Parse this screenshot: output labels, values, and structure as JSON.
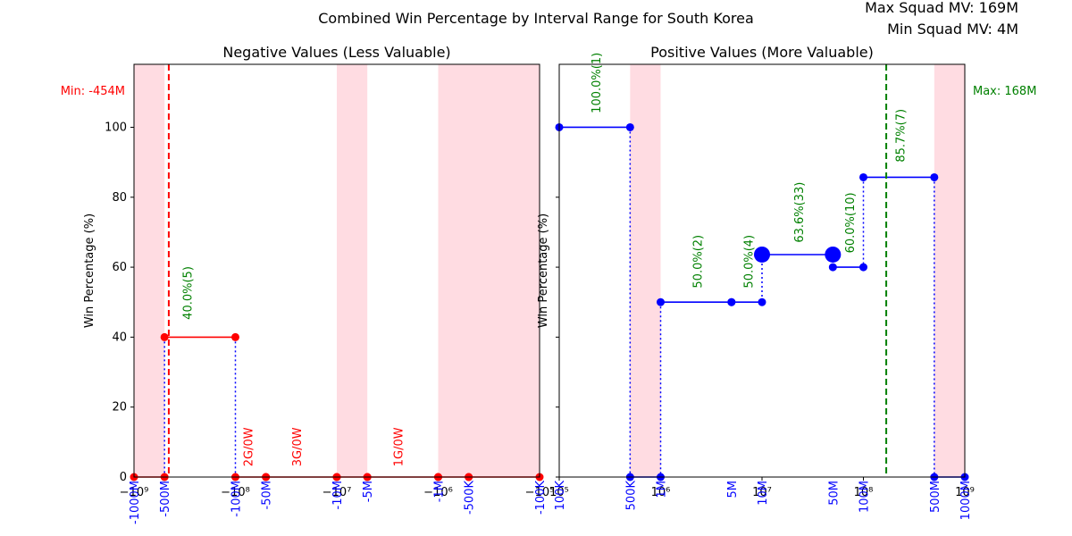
{
  "figure": {
    "suptitle": "Combined Win Percentage by Interval Range for South Korea",
    "max_label": "Max Squad MV: 169M",
    "min_label": "Min Squad MV: 4M"
  },
  "colors": {
    "negative": "#ff0000",
    "positive": "#0000ff",
    "annotation": "#008000",
    "shade": "#ffc0cb",
    "axis": "#000000"
  },
  "chart_data": [
    {
      "type": "line",
      "title": "Negative Values (Less Valuable)",
      "ylabel": "Win Percentage (%)",
      "xscale": "symlog-negative",
      "xlim": [
        -1000000000,
        -100000
      ],
      "ylim": [
        0,
        118
      ],
      "yticks": [
        0,
        20,
        40,
        60,
        80,
        100
      ],
      "xticks": [
        {
          "value": -1000000000,
          "label": "−10⁹"
        },
        {
          "value": -100000000,
          "label": "−10⁸"
        },
        {
          "value": -10000000,
          "label": "−10⁷"
        },
        {
          "value": -1000000,
          "label": "−10⁶"
        },
        {
          "value": -100000,
          "label": "−10⁵"
        }
      ],
      "interval_labels": [
        {
          "value": -1000000000,
          "label": "-1000M"
        },
        {
          "value": -500000000,
          "label": "-500M"
        },
        {
          "value": -100000000,
          "label": "-100M"
        },
        {
          "value": -50000000,
          "label": "-50M"
        },
        {
          "value": -10000000,
          "label": "-10M"
        },
        {
          "value": -5000000,
          "label": "-5M"
        },
        {
          "value": -1000000,
          "label": "-1M"
        },
        {
          "value": -500000,
          "label": "-500K"
        },
        {
          "value": -100000,
          "label": "-100K"
        }
      ],
      "shaded_ranges": [
        [
          -1000000000,
          -500000000
        ],
        [
          -10000000,
          -5000000
        ],
        [
          -1000000,
          -100000
        ]
      ],
      "steps": [
        {
          "x0": -1000000000,
          "x1": -500000000,
          "y": 0
        },
        {
          "x0": -500000000,
          "x1": -100000000,
          "y": 40
        },
        {
          "x0": -100000000,
          "x1": -50000000,
          "y": 0
        },
        {
          "x0": -50000000,
          "x1": -10000000,
          "y": 0
        },
        {
          "x0": -10000000,
          "x1": -5000000,
          "y": 0
        },
        {
          "x0": -5000000,
          "x1": -1000000,
          "y": 0
        },
        {
          "x0": -1000000,
          "x1": -500000,
          "y": 0
        },
        {
          "x0": -500000,
          "x1": -100000,
          "y": 0
        }
      ],
      "annotations": [
        {
          "x": -300000000,
          "y": 45,
          "text": "40.0%(5)",
          "color": "green"
        },
        {
          "x": -75000000,
          "y": 3,
          "text": "2G/0W",
          "color": "red"
        },
        {
          "x": -25000000,
          "y": 3,
          "text": "3G/0W",
          "color": "red"
        },
        {
          "x": -2500000,
          "y": 3,
          "text": "1G/0W",
          "color": "red"
        }
      ],
      "vline": {
        "x": -454000000,
        "label": "Min: -454M"
      }
    },
    {
      "type": "line",
      "title": "Positive Values (More Valuable)",
      "ylabel": "Win Percentage (%)",
      "xscale": "log",
      "xlim": [
        100000,
        1000000000
      ],
      "ylim": [
        0,
        118
      ],
      "yticks": [
        0,
        20,
        40,
        60,
        80,
        100
      ],
      "xticks": [
        {
          "value": 100000,
          "label": "10⁵"
        },
        {
          "value": 1000000,
          "label": "10⁶"
        },
        {
          "value": 10000000,
          "label": "10⁷"
        },
        {
          "value": 100000000,
          "label": "10⁸"
        },
        {
          "value": 1000000000,
          "label": "10⁹"
        }
      ],
      "interval_labels": [
        {
          "value": 100000,
          "label": "100K"
        },
        {
          "value": 500000,
          "label": "500K"
        },
        {
          "value": 1000000,
          "label": "1M"
        },
        {
          "value": 5000000,
          "label": "5M"
        },
        {
          "value": 10000000,
          "label": "10M"
        },
        {
          "value": 50000000,
          "label": "50M"
        },
        {
          "value": 100000000,
          "label": "100M"
        },
        {
          "value": 500000000,
          "label": "500M"
        },
        {
          "value": 1000000000,
          "label": "1000M"
        }
      ],
      "shaded_ranges": [
        [
          500000,
          1000000
        ],
        [
          500000000,
          1000000000
        ]
      ],
      "steps": [
        {
          "x0": 100000,
          "x1": 500000,
          "y": 100
        },
        {
          "x0": 500000,
          "x1": 1000000,
          "y": 0
        },
        {
          "x0": 1000000,
          "x1": 5000000,
          "y": 50
        },
        {
          "x0": 5000000,
          "x1": 10000000,
          "y": 50
        },
        {
          "x0": 10000000,
          "x1": 50000000,
          "y": 63.6,
          "big": true
        },
        {
          "x0": 50000000,
          "x1": 100000000,
          "y": 60
        },
        {
          "x0": 100000000,
          "x1": 500000000,
          "y": 85.7
        },
        {
          "x0": 500000000,
          "x1": 1000000000,
          "y": 0
        }
      ],
      "annotations": [
        {
          "x": 230000,
          "y": 104,
          "text": "100.0%(1)",
          "color": "green"
        },
        {
          "x": 2300000,
          "y": 54,
          "text": "50.0%(2)",
          "color": "green"
        },
        {
          "x": 7300000,
          "y": 54,
          "text": "50.0%(4)",
          "color": "green"
        },
        {
          "x": 23000000,
          "y": 67,
          "text": "63.6%(33)",
          "color": "green"
        },
        {
          "x": 73000000,
          "y": 64,
          "text": "60.0%(10)",
          "color": "green"
        },
        {
          "x": 230000000,
          "y": 90,
          "text": "85.7%(7)",
          "color": "green"
        }
      ],
      "vline": {
        "x": 168000000,
        "label": "Max: 168M"
      }
    }
  ]
}
